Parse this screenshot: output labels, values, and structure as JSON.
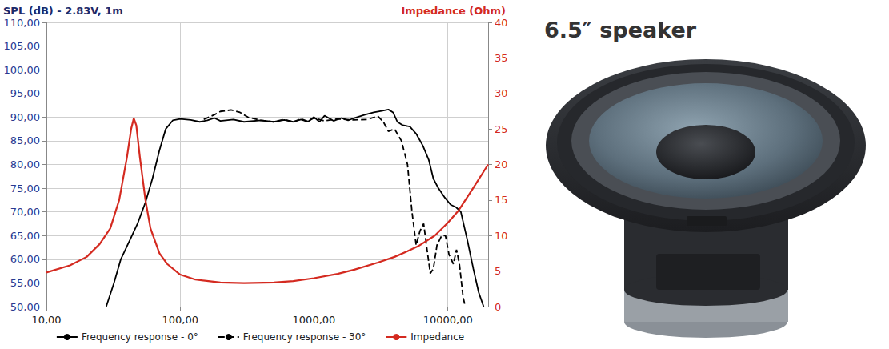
{
  "chart_data": {
    "type": "line",
    "ylabel": "SPL (dB) - 2.83V, 1m",
    "y2label": "Impedance (Ohm)",
    "annotations": [
      "6.5″ speaker"
    ],
    "log": "x",
    "grid": true,
    "legend": "bottom",
    "xlim": [
      10,
      20000
    ],
    "xticks": [
      {
        "value": 10,
        "label": "10,00"
      },
      {
        "value": 100,
        "label": "100,00"
      },
      {
        "value": 1000,
        "label": "1000,00"
      },
      {
        "value": 10000,
        "label": "10000,00"
      }
    ],
    "ylim": [
      50,
      110
    ],
    "yticks": [
      {
        "value": 50,
        "label": "50,00"
      },
      {
        "value": 55,
        "label": "55,00"
      },
      {
        "value": 60,
        "label": "60,00"
      },
      {
        "value": 65,
        "label": "65,00"
      },
      {
        "value": 70,
        "label": "70,00"
      },
      {
        "value": 75,
        "label": "75,00"
      },
      {
        "value": 80,
        "label": "80,00"
      },
      {
        "value": 85,
        "label": "85,00"
      },
      {
        "value": 90,
        "label": "90,00"
      },
      {
        "value": 95,
        "label": "95,00"
      },
      {
        "value": 100,
        "label": "100,00"
      },
      {
        "value": 105,
        "label": "105,00"
      },
      {
        "value": 110,
        "label": "110,00"
      }
    ],
    "y2lim": [
      0,
      40
    ],
    "y2ticks": [
      0,
      5,
      10,
      15,
      20,
      25,
      30,
      35,
      40
    ],
    "series": [
      {
        "name": "Frequency response - 0°",
        "color": "#000000",
        "line_style": "solid",
        "marker": "none",
        "x": [
          28,
          32,
          36,
          42,
          48,
          55,
          62,
          70,
          78,
          88,
          100,
          120,
          140,
          160,
          180,
          200,
          250,
          300,
          400,
          500,
          600,
          700,
          800,
          900,
          1000,
          1100,
          1200,
          1400,
          1600,
          1800,
          2000,
          2400,
          2800,
          3200,
          3600,
          3900,
          4200,
          4600,
          5200,
          5800,
          6500,
          7200,
          7800,
          8500,
          9500,
          10500,
          11500,
          12500,
          14000,
          15500,
          17000,
          18500
        ],
        "values": [
          50,
          55,
          60,
          64,
          67.5,
          72,
          77,
          83,
          87.5,
          89.3,
          89.6,
          89.4,
          89,
          89.3,
          89.8,
          89.2,
          89.5,
          89,
          89.3,
          89,
          89.4,
          89,
          89.5,
          89,
          90,
          89,
          90.3,
          89.2,
          89.8,
          89.3,
          89.8,
          90.5,
          91,
          91.3,
          91.6,
          91,
          89,
          88.3,
          88,
          86.5,
          84,
          81,
          77,
          75,
          73,
          71.5,
          71,
          70,
          64,
          58,
          53,
          50
        ]
      },
      {
        "name": "Frequency response - 30°",
        "color": "#000000",
        "line_style": "dashed",
        "marker": "none",
        "x": [
          150,
          180,
          200,
          240,
          280,
          320,
          400,
          500,
          600,
          700,
          800,
          900,
          1000,
          1200,
          1500,
          2000,
          2500,
          3000,
          3300,
          3600,
          4000,
          4500,
          5000,
          5400,
          5800,
          6200,
          6600,
          7000,
          7400,
          7800,
          8300,
          9000,
          9600,
          10200,
          11000,
          11600,
          12200,
          13000,
          13500
        ],
        "values": [
          89.5,
          90.5,
          91.2,
          91.5,
          91,
          90,
          89.3,
          89,
          89.5,
          89,
          89.6,
          89.1,
          89.8,
          89.2,
          89.6,
          89.4,
          89.5,
          90.2,
          89,
          87,
          87.5,
          85,
          80,
          70,
          63,
          66,
          67.5,
          62,
          57,
          58,
          63,
          65,
          65,
          61,
          59,
          62,
          59,
          52,
          50
        ]
      },
      {
        "name": "Impedance",
        "color": "#d42a20",
        "line_style": "solid",
        "marker": "none",
        "axis": "y2",
        "x": [
          10,
          15,
          20,
          25,
          30,
          35,
          40,
          43,
          45,
          47,
          50,
          55,
          60,
          70,
          80,
          100,
          130,
          200,
          300,
          500,
          700,
          1000,
          1500,
          2000,
          3000,
          4000,
          5000,
          6000,
          8000,
          10000,
          12000,
          15000,
          20000
        ],
        "values": [
          4.8,
          5.8,
          7,
          8.8,
          11,
          15,
          21,
          25,
          26.5,
          25.5,
          21,
          15,
          11,
          7.5,
          6,
          4.5,
          3.8,
          3.4,
          3.3,
          3.4,
          3.6,
          4,
          4.6,
          5.2,
          6.2,
          7,
          7.8,
          8.5,
          10,
          11.8,
          13.5,
          16.3,
          20
        ]
      }
    ]
  }
}
